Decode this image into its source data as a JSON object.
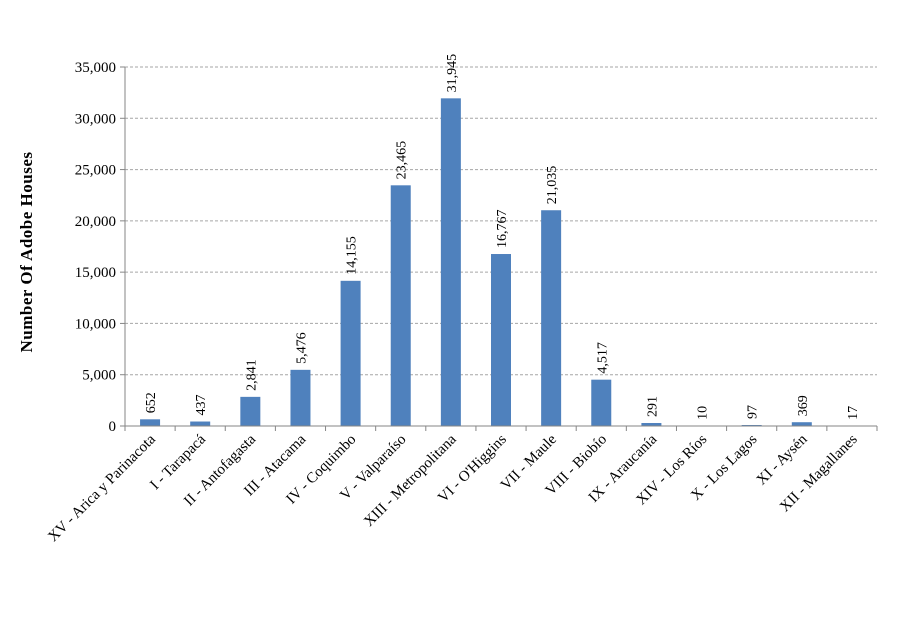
{
  "chart_data": {
    "type": "bar",
    "title": "",
    "xlabel": "",
    "ylabel": "Number Of Adobe Houses",
    "ylim": [
      0,
      35000
    ],
    "yticks": [
      "0",
      "5,000",
      "10,000",
      "15,000",
      "20,000",
      "25,000",
      "30,000",
      "35,000"
    ],
    "grid": true,
    "bar_color": "#4f81bd",
    "categories": [
      "XV - Arica y Parinacota",
      "I - Tarapacá",
      "II - Antofagasta",
      "III - Atacama",
      "IV - Coquimbo",
      "V - Valparaíso",
      "XIII - Metropolitana",
      "VI - O'Higgins",
      "VII - Maule",
      "VIII - Biobío",
      "IX - Araucanía",
      "XIV - Los Ríos",
      "X - Los Lagos",
      "XI - Aysén",
      "XII - Magallanes"
    ],
    "values": [
      652,
      437,
      2841,
      5476,
      14155,
      23465,
      31945,
      16767,
      21035,
      4517,
      291,
      10,
      97,
      369,
      17
    ],
    "data_labels": [
      "652",
      "437",
      "2,841",
      "5,476",
      "14,155",
      "23,465",
      "31,945",
      "16,767",
      "21,035",
      "4,517",
      "291",
      "10",
      "97",
      "369",
      "17"
    ]
  }
}
